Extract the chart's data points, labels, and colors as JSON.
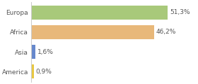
{
  "categories": [
    "Europa",
    "Africa",
    "Asia",
    "America"
  ],
  "values": [
    51.3,
    46.2,
    1.6,
    0.9
  ],
  "labels": [
    "51,3%",
    "46,2%",
    "1,6%",
    "0,9%"
  ],
  "bar_colors": [
    "#a8c97a",
    "#e8b87a",
    "#6688cc",
    "#e8c840"
  ],
  "background_color": "#ffffff",
  "xlim": [
    0,
    62
  ],
  "label_fontsize": 6.5,
  "category_fontsize": 6.5,
  "bar_height": 0.7,
  "grid_color": "#dddddd",
  "spine_color": "#cccccc",
  "text_color": "#555555"
}
